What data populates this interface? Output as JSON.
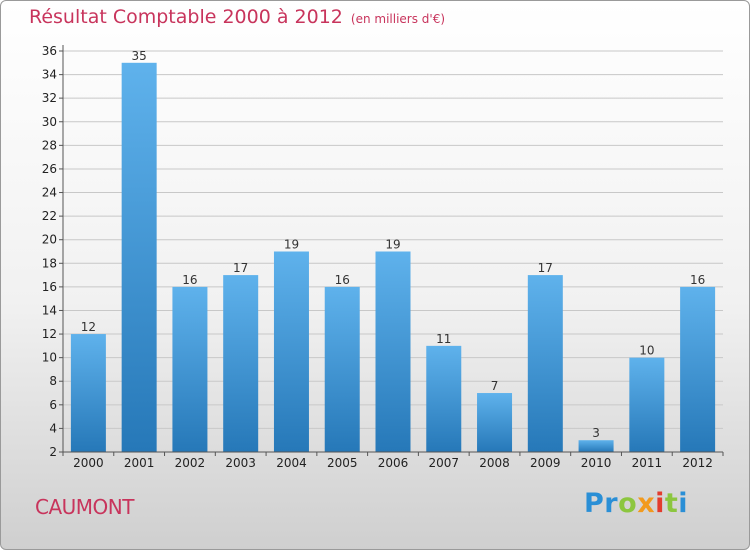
{
  "header": {
    "title": "Résultat Comptable 2000 à 2012",
    "subtitle": "(en milliers d'€)"
  },
  "footer": {
    "city": "CAUMONT",
    "logo_letters": [
      {
        "char": "P",
        "color": "#2a8fd6"
      },
      {
        "char": "r",
        "color": "#2a8fd6"
      },
      {
        "char": "o",
        "color": "#8cc63f"
      },
      {
        "char": "x",
        "color": "#f29a1d"
      },
      {
        "char": "i",
        "color": "#e33c2e"
      },
      {
        "char": "t",
        "color": "#8cc63f"
      },
      {
        "char": "i",
        "color": "#2a8fd6"
      }
    ]
  },
  "colors": {
    "title": "#c8345c",
    "bar_light": "#5fb2ec",
    "bar_dark": "#2678b8",
    "grid": "#c8c8c8"
  },
  "chart_data": {
    "type": "bar",
    "title": "Résultat Comptable 2000 à 2012",
    "subtitle": "(en milliers d'€)",
    "xlabel": "",
    "ylabel": "",
    "categories": [
      "2000",
      "2001",
      "2002",
      "2003",
      "2004",
      "2005",
      "2006",
      "2007",
      "2008",
      "2009",
      "2010",
      "2011",
      "2012"
    ],
    "values": [
      12,
      35,
      16,
      17,
      19,
      16,
      19,
      11,
      7,
      17,
      3,
      10,
      16
    ],
    "ylim": [
      2,
      36
    ],
    "yticks": [
      2,
      4,
      6,
      8,
      10,
      12,
      14,
      16,
      18,
      20,
      22,
      24,
      26,
      28,
      30,
      32,
      34,
      36
    ],
    "grid": "horizontal"
  }
}
